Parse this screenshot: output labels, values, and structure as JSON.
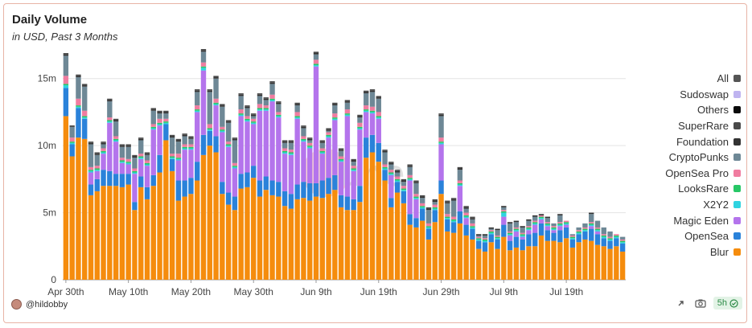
{
  "header": {
    "title": "Daily Volume",
    "subtitle": "in USD, Past 3 Months"
  },
  "footer": {
    "user": "@hildobby",
    "freshness": "5h"
  },
  "colors": {
    "Blur": "#f58c0d",
    "OpenSea": "#2a82da",
    "Magic Eden": "#b474ec",
    "X2Y2": "#2fd3e0",
    "LooksRare": "#27c766",
    "OpenSea Pro": "#f07ca0",
    "CryptoPunks": "#6e8896",
    "Foundation": "#333333",
    "SuperRare": "#4a4a4a",
    "Others": "#0a0a0a",
    "Sudoswap": "#bfb4f0",
    "All": "#555555"
  },
  "chart_data": {
    "type": "bar",
    "stacked": true,
    "title": "Daily Volume",
    "subtitle": "in USD, Past 3 Months",
    "ylim": [
      0,
      17500000
    ],
    "yticks": [
      0,
      5000000,
      10000000,
      15000000
    ],
    "ytick_labels": [
      "0",
      "5m",
      "10m",
      "15m"
    ],
    "xtick_labels": [
      {
        "index": 0,
        "label": "Apr 30th"
      },
      {
        "index": 10,
        "label": "May 10th"
      },
      {
        "index": 20,
        "label": "May 20th"
      },
      {
        "index": 30,
        "label": "May 30th"
      },
      {
        "index": 40,
        "label": "Jun 9th"
      },
      {
        "index": 50,
        "label": "Jun 19th"
      },
      {
        "index": 60,
        "label": "Jun 29th"
      },
      {
        "index": 70,
        "label": "Jul 9th"
      },
      {
        "index": 80,
        "label": "Jul 19th"
      }
    ],
    "grid": "horizontal",
    "legend": {
      "position": "right",
      "entries": [
        "All",
        "Sudoswap",
        "Others",
        "SuperRare",
        "Foundation",
        "CryptoPunks",
        "OpenSea Pro",
        "LooksRare",
        "X2Y2",
        "Magic Eden",
        "OpenSea",
        "Blur"
      ]
    },
    "totals": [
      16.9,
      12.3,
      15.3,
      14.6,
      10.3,
      8.9,
      10.3,
      13.4,
      11.9,
      10.1,
      10.0,
      9.3,
      10.6,
      9.5,
      12.7,
      12.5,
      12.5,
      10.7,
      10.5,
      10.8,
      10.6,
      14.1,
      17.2,
      14.1,
      15.2,
      13.0,
      11.8,
      10.5,
      13.8,
      12.9,
      12.3,
      13.8,
      13.5,
      14.7,
      13.2,
      10.3,
      10.3,
      13.1,
      11.4,
      10.5,
      16.9,
      10.3,
      13.2,
      13.1,
      9.7,
      13.4,
      8.9,
      13.2,
      14.0,
      14.1,
      15.6,
      9.6,
      8.7,
      8.1,
      7.5,
      8.5,
      7.3,
      6.2,
      5.0,
      5.5,
      12.3,
      5.8,
      6.0,
      8.3,
      5.4,
      4.7,
      3.4,
      3.4,
      3.6,
      3.8,
      5.6,
      4.4,
      4.5,
      4.1,
      4.6,
      4.8,
      4.8,
      4.7,
      4.2,
      4.9,
      4.4,
      3.0,
      4.0,
      4.2,
      5.0,
      4.5,
      3.9,
      3.6,
      3.3,
      3.1
    ],
    "series": [
      {
        "name": "Blur",
        "values": [
          12.2,
          9.2,
          10.6,
          10.5,
          6.3,
          6.6,
          7.0,
          7.0,
          7.0,
          6.9,
          7.1,
          5.2,
          6.9,
          6.0,
          7.0,
          8.0,
          10.4,
          8.1,
          5.9,
          6.2,
          6.4,
          7.4,
          9.3,
          10.0,
          9.5,
          6.4,
          5.6,
          5.2,
          6.8,
          6.9,
          7.6,
          6.2,
          6.7,
          6.3,
          6.2,
          5.5,
          5.3,
          6.0,
          6.1,
          5.9,
          6.2,
          6.1,
          6.4,
          6.7,
          5.4,
          5.2,
          5.2,
          5.8,
          9.1,
          9.5,
          8.8,
          7.4,
          5.4,
          6.5,
          5.7,
          4.1,
          3.9,
          4.4,
          3.0,
          4.3,
          6.4,
          3.6,
          3.5,
          4.2,
          3.3,
          3.0,
          2.3,
          2.1,
          2.8,
          2.3,
          3.2,
          2.2,
          2.4,
          2.2,
          2.5,
          2.5,
          3.3,
          2.9,
          2.9,
          2.8,
          3.1,
          2.4,
          2.8,
          3.0,
          2.9,
          2.6,
          2.5,
          2.3,
          2.5,
          2.1
        ]
      },
      {
        "name": "OpenSea",
        "values": [
          2.1,
          0.9,
          2.2,
          1.5,
          0.8,
          0.9,
          1.2,
          1.1,
          0.9,
          1.0,
          0.8,
          0.6,
          0.8,
          0.9,
          0.8,
          1.3,
          1.2,
          0.9,
          1.5,
          1.2,
          1.2,
          1.4,
          1.5,
          1.1,
          1.2,
          0.9,
          0.9,
          1.0,
          1.1,
          1.1,
          0.9,
          1.2,
          1.0,
          1.1,
          1.1,
          1.1,
          1.1,
          1.1,
          1.2,
          1.3,
          1.0,
          1.3,
          1.2,
          1.1,
          0.9,
          1.0,
          0.8,
          1.2,
          1.5,
          1.3,
          1.4,
          0.8,
          0.7,
          0.8,
          0.9,
          0.8,
          0.7,
          0.9,
          0.8,
          0.9,
          1.0,
          0.9,
          0.8,
          0.9,
          0.8,
          0.8,
          0.6,
          0.7,
          0.6,
          0.7,
          0.9,
          0.7,
          0.8,
          0.8,
          0.9,
          1.0,
          0.9,
          0.8,
          0.6,
          0.9,
          0.8,
          0.6,
          0.6,
          0.6,
          0.9,
          0.8,
          0.6,
          0.6,
          0.6,
          0.6
        ]
      },
      {
        "name": "Magic Eden",
        "values": [
          0,
          0,
          0,
          0,
          0.9,
          0.6,
          1.2,
          3.6,
          2.4,
          0.8,
          0.7,
          2.1,
          1.3,
          1.6,
          3.4,
          2.2,
          0,
          0,
          1.5,
          2.3,
          2.1,
          3.7,
          4.8,
          0,
          2.3,
          3.7,
          3.4,
          2.1,
          4.3,
          3.8,
          3.1,
          5.2,
          4.9,
          5.9,
          4.8,
          2.8,
          2.9,
          4.9,
          3.0,
          2.6,
          8.7,
          2.0,
          3.0,
          4.1,
          2.5,
          6.0,
          2.1,
          4.2,
          1.9,
          1.6,
          1.8,
          0,
          1.7,
          0,
          0,
          2.5,
          1.4,
          0,
          0,
          0,
          2.7,
          0,
          0,
          1.9,
          0.5,
          0,
          0,
          0,
          0,
          0,
          0.6,
          0.4,
          0.4,
          0.2,
          0.3,
          0.6,
          0.3,
          0.3,
          0.2,
          0.3,
          0.2,
          0,
          0,
          0,
          0.2,
          0.2,
          0,
          0,
          0,
          0
        ]
      },
      {
        "name": "X2Y2",
        "values": [
          0.2,
          0.1,
          0.1,
          0.1,
          0.1,
          0.1,
          0.1,
          0.1,
          0.1,
          0.1,
          0.1,
          0.1,
          0.1,
          0.1,
          0.1,
          0.1,
          0.1,
          0.1,
          0.1,
          0.1,
          0.1,
          0.1,
          0.2,
          0.1,
          0.1,
          0.1,
          0.1,
          0.1,
          0.1,
          0.1,
          0.1,
          0.1,
          0.1,
          0.1,
          0.1,
          0.1,
          0.1,
          0.1,
          0.1,
          0.1,
          0.1,
          0.1,
          0.1,
          0.1,
          0.1,
          0.1,
          0.1,
          0.1,
          0.1,
          0.1,
          0.1,
          0.1,
          0.1,
          0.1,
          0.1,
          0.1,
          0.1,
          0.1,
          0.1,
          0.1,
          0.1,
          0.1,
          0.1,
          0.1,
          0.1,
          0.1,
          0.1,
          0.1,
          0.1,
          0.1,
          0.3,
          0.1,
          0.1,
          0.1,
          0.1,
          0.1,
          0.1,
          0.1,
          0.1,
          0.1,
          0.1,
          0.1,
          0.1,
          0.1,
          0.1,
          0.1,
          0.1,
          0.1,
          0.1,
          0.1
        ]
      },
      {
        "name": "LooksRare",
        "values": [
          0.1,
          0.1,
          0.1,
          0.1,
          0.1,
          0.1,
          0.1,
          0.1,
          0.1,
          0.1,
          0.1,
          0.1,
          0.1,
          0.1,
          0.1,
          0.1,
          0.1,
          0.1,
          0.1,
          0.1,
          0.1,
          0.1,
          0.1,
          0.1,
          0.1,
          0.1,
          0.1,
          0.1,
          0.1,
          0.1,
          0.1,
          0.1,
          0.1,
          0.1,
          0.1,
          0.1,
          0.1,
          0.1,
          0.1,
          0.1,
          0.1,
          0.1,
          0.1,
          0.1,
          0.1,
          0.1,
          0.1,
          0.1,
          0.1,
          0.1,
          0.1,
          0.1,
          0.1,
          0.1,
          0.1,
          0.1,
          0.1,
          0.1,
          0.1,
          0.1,
          0.1,
          0.1,
          0.1,
          0.1,
          0.1,
          0.1,
          0.1,
          0.1,
          0.1,
          0.1,
          0.1,
          0.1,
          0.1,
          0.1,
          0.1,
          0.1,
          0.1,
          0.1,
          0.1,
          0.1,
          0.1,
          0.1,
          0.1,
          0.1,
          0.1,
          0.1,
          0.1,
          0.1,
          0.1,
          0.1
        ]
      },
      {
        "name": "OpenSea Pro",
        "values": [
          0.6,
          0.3,
          0.5,
          0.4,
          0.2,
          0.2,
          0.2,
          0.2,
          0.2,
          0.2,
          0.2,
          0.2,
          0.2,
          0.2,
          0.2,
          0.3,
          0.2,
          0.2,
          0.3,
          0.2,
          0.2,
          0.3,
          0.3,
          0.3,
          0.3,
          0.2,
          0.2,
          0.2,
          0.3,
          0.2,
          0.2,
          0.3,
          0.2,
          0.3,
          0.2,
          0.2,
          0.2,
          0.3,
          0.2,
          0.2,
          0.3,
          0.2,
          0.2,
          0.3,
          0.2,
          0.3,
          0.2,
          0.3,
          0.3,
          0.3,
          0.3,
          0.2,
          0.2,
          0.2,
          0.2,
          0.2,
          0.2,
          0.2,
          0.2,
          0.2,
          0.3,
          0.2,
          0.2,
          0.2,
          0.2,
          0.2,
          0.1,
          0.1,
          0.1,
          0.1,
          0.1,
          0.1,
          0.1,
          0.1,
          0.1,
          0.1,
          0.1,
          0.1,
          0.1,
          0.1,
          0.1,
          0.1,
          0.1,
          0.1,
          0.1,
          0.1,
          0.1,
          0.1,
          0.1,
          0.1
        ]
      },
      {
        "name": "CryptoPunks",
        "values": [
          1.5,
          0.8,
          1.6,
          1.8,
          1.7,
          0.8,
          0.3,
          1.2,
          1.1,
          0.8,
          0.9,
          0.8,
          1.0,
          0.4,
          1.0,
          0.4,
          0.4,
          1.2,
          0.9,
          0.6,
          0.4,
          1.0,
          0.8,
          2.4,
          1.5,
          1.5,
          1.4,
          1.7,
          1.0,
          0.6,
          0.2,
          0.6,
          0.4,
          0.8,
          0.6,
          0.4,
          0.5,
          0.5,
          0.6,
          0.2,
          0.4,
          0.4,
          0.1,
          0.6,
          0.4,
          0.5,
          0.3,
          0.4,
          0.9,
          1.1,
          1.0,
          0.9,
          0.4,
          0.3,
          0.3,
          0.6,
          0.8,
          0.4,
          1.0,
          0.2,
          1.6,
          0.8,
          1.2,
          0.8,
          0.3,
          0.3,
          0.1,
          0.2,
          0.1,
          0.4,
          0.2,
          0.6,
          0.4,
          0.4,
          0.4,
          0.3,
          0.0,
          0.3,
          0.2,
          0.5,
          0.0,
          0.1,
          0.2,
          0.3,
          0.6,
          0.5,
          0.5,
          0.4,
          0.0,
          0.2
        ]
      },
      {
        "name": "Foundation",
        "values": [
          0.1,
          0.1,
          0.1,
          0.1,
          0.1,
          0.1,
          0.1,
          0.1,
          0.1,
          0.1,
          0.1,
          0.1,
          0.1,
          0.1,
          0.1,
          0.1,
          0.1,
          0.1,
          0.1,
          0.1,
          0.1,
          0.1,
          0.1,
          0.1,
          0.1,
          0.1,
          0.1,
          0.1,
          0.1,
          0.1,
          0.1,
          0.1,
          0.1,
          0.1,
          0.1,
          0.1,
          0.1,
          0.1,
          0.1,
          0.1,
          0.1,
          0.1,
          0.1,
          0.1,
          0.1,
          0.1,
          0.1,
          0.1,
          0.1,
          0.1,
          0.1,
          0.1,
          0.1,
          0.1,
          0.1,
          0.1,
          0.1,
          0.1,
          0.1,
          0.1,
          0.1,
          0.1,
          0.1,
          0.1,
          0.1,
          0.1,
          0.1,
          0.1,
          0.1,
          0.1,
          0.1,
          0.1,
          0.1,
          0.1,
          0.1,
          0.1,
          0.1,
          0.1,
          0.0,
          0.1,
          0.0,
          0.0,
          0.0,
          0.0,
          0.1,
          0.0,
          0.0,
          0.0,
          0.0,
          0.0
        ]
      },
      {
        "name": "SuperRare",
        "values": [
          0.1,
          0.0,
          0.1,
          0.1,
          0.1,
          0.1,
          0.1,
          0.1,
          0.1,
          0.1,
          0.1,
          0.1,
          0.1,
          0.1,
          0.1,
          0.1,
          0.1,
          0.1,
          0.1,
          0.1,
          0.1,
          0.1,
          0.1,
          0.1,
          0.1,
          0.1,
          0.1,
          0.1,
          0.1,
          0.1,
          0.1,
          0.1,
          0.1,
          0.1,
          0.1,
          0.1,
          0.1,
          0.1,
          0.1,
          0.1,
          0.1,
          0.1,
          0.1,
          0.1,
          0.1,
          0.1,
          0.1,
          0.1,
          0.1,
          0.1,
          0.1,
          0.1,
          0.1,
          0.1,
          0.1,
          0.1,
          0.1,
          0.1,
          0.1,
          0.1,
          0.1,
          0.1,
          0.1,
          0.1,
          0.1,
          0.1,
          0.0,
          0.0,
          0.0,
          0.0,
          0.0,
          0.0,
          0.0,
          0.0,
          0.0,
          0.0,
          0.0,
          0.0,
          0.0,
          0.0,
          0.0,
          0.0,
          0.0,
          0.0,
          0.0,
          0.0,
          0.0,
          0.0,
          0.0,
          0.0
        ]
      },
      {
        "name": "Others",
        "values": [
          0,
          0,
          0,
          0,
          0,
          0,
          0,
          0,
          0,
          0,
          0,
          0,
          0,
          0,
          0,
          0,
          0,
          0,
          0,
          0,
          0,
          0,
          0,
          0,
          0,
          0,
          0,
          0,
          0,
          0,
          0,
          0,
          0,
          0,
          0,
          0,
          0,
          0,
          0,
          0,
          0,
          0,
          0,
          0,
          0,
          0,
          0,
          0,
          0,
          0,
          0,
          0,
          0,
          0,
          0,
          0,
          0,
          0,
          0,
          0,
          0,
          0,
          0,
          0,
          0,
          0,
          0,
          0,
          0,
          0,
          0,
          0,
          0,
          0,
          0,
          0,
          0,
          0,
          0,
          0,
          0,
          0,
          0,
          0,
          0,
          0,
          0,
          0,
          0,
          0
        ]
      },
      {
        "name": "Sudoswap",
        "values": [
          0,
          0,
          0,
          0,
          0,
          0,
          0,
          0,
          0,
          0,
          0,
          0,
          0,
          0,
          0,
          0,
          0,
          0,
          0,
          0,
          0,
          0,
          0,
          0,
          0,
          0,
          0,
          0,
          0,
          0,
          0,
          0,
          0,
          0,
          0,
          0,
          0,
          0,
          0,
          0,
          0,
          0,
          0,
          0,
          0,
          0,
          0,
          0,
          0,
          0,
          0,
          0,
          0,
          0,
          0,
          0,
          0,
          0,
          0,
          0,
          0,
          0,
          0,
          0,
          0,
          0,
          0,
          0,
          0,
          0,
          0,
          0,
          0,
          0,
          0,
          0,
          0,
          0,
          0,
          0,
          0,
          0,
          0,
          0,
          0,
          0,
          0,
          0,
          0,
          0
        ]
      }
    ]
  }
}
